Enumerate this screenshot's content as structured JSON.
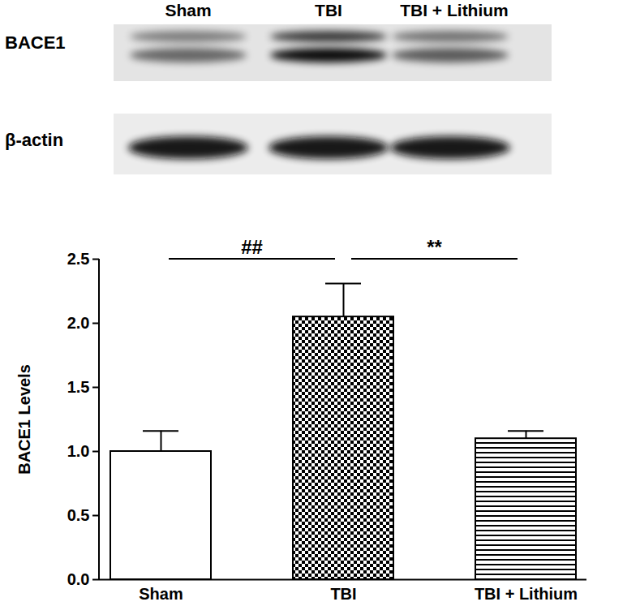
{
  "chart_data": {
    "type": "bar",
    "categories": [
      "Sham",
      "TBI",
      "TBI + Lithium"
    ],
    "values": [
      1.0,
      2.05,
      1.1
    ],
    "errors": [
      0.16,
      0.26,
      0.06
    ],
    "y_label": "BACE1 Levels",
    "ylim": [
      0,
      2.5
    ],
    "yticks": [
      {
        "value": 0,
        "label": "0.0"
      },
      {
        "value": 0.5,
        "label": "0.5"
      },
      {
        "value": 1,
        "label": "1.0"
      },
      {
        "value": 1.5,
        "label": "1.5"
      },
      {
        "value": 2,
        "label": "2.0"
      },
      {
        "value": 2.5,
        "label": "2.5"
      }
    ],
    "annotations": [
      {
        "text": "##",
        "from": "Sham",
        "to": "TBI",
        "y": 2.5
      },
      {
        "text": "**",
        "from": "TBI",
        "to": "TBI + Lithium",
        "y": 2.5
      }
    ]
  },
  "blot": {
    "lanes": [
      "Sham",
      "TBI",
      "TBI + Lithium"
    ],
    "rows": [
      "BACE1",
      "β-actin"
    ]
  }
}
